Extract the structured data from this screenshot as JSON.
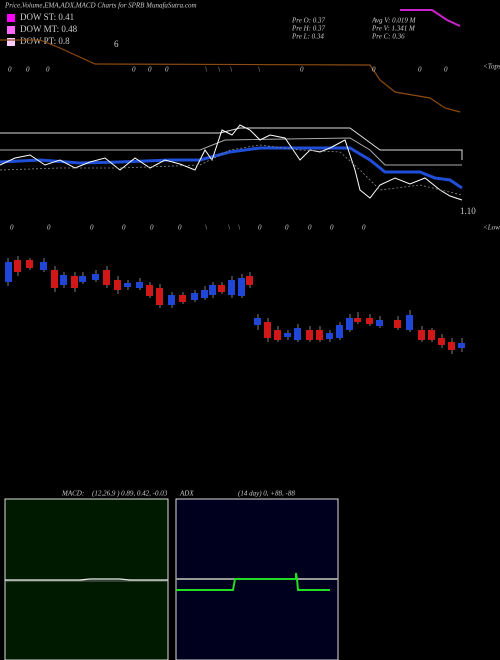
{
  "header": {
    "title": "Price,Volume,EMA,ADX,MACD Charts for SPRB MunafaSutra.com"
  },
  "legend": [
    {
      "label": "DOW ST: 0.41",
      "color": "#ff00ff"
    },
    {
      "label": "DOW MT: 0.48",
      "color": "#ff66ff"
    },
    {
      "label": "DOW PT: 0.8",
      "color": "#ffccff"
    }
  ],
  "legend_note": "6",
  "stats": [
    "Pre O: 0.37",
    "Avg V: 0.019 M",
    "Pre H: 0.37",
    "Pre V: 1.341 M",
    "Pre L: 0.34",
    "Pre C: 0.36"
  ],
  "tops_label": "<Tops",
  "lows_label": "<Lows",
  "price_label": "1.10",
  "top_markers": [
    "0",
    "0",
    "0",
    "0",
    "0",
    "0",
    "\\",
    "\\",
    "\\",
    "\\",
    "0",
    "0",
    "0",
    "0"
  ],
  "low_markers": [
    "0",
    "0",
    "0",
    "0",
    "0",
    "0",
    "\\",
    "\\",
    "\\",
    "0",
    "0",
    "0",
    "0",
    "0"
  ],
  "macd": {
    "label": "MACD:",
    "params": "(12,26,9 ) 0.89, 0.42, -0.03"
  },
  "adx": {
    "label": "ADX",
    "params": "(14 day) 0, +88, -88"
  }
}
